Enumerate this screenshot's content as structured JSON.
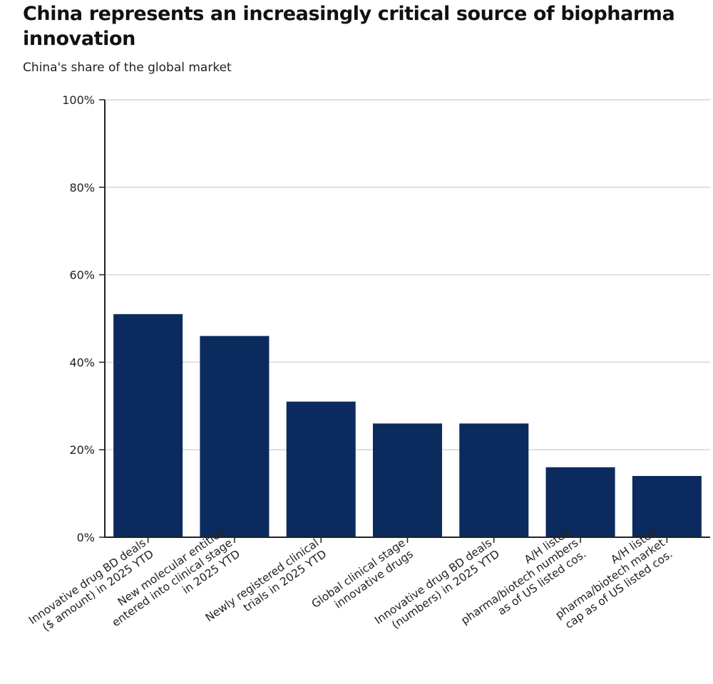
{
  "header": {
    "title": "China represents an increasingly critical source of biopharma innovation",
    "subtitle": "China's share of the global market"
  },
  "colors": {
    "bar": "#0b2b5e",
    "grid": "#d6d6d6",
    "axis": "#222222"
  },
  "chart_data": {
    "type": "bar",
    "title": "China represents an increasingly critical source of biopharma innovation",
    "subtitle": "China's share of the global market",
    "xlabel": "",
    "ylabel": "",
    "ylim": [
      0,
      100
    ],
    "yticks": [
      0,
      20,
      40,
      60,
      80,
      100
    ],
    "ytick_labels": [
      "0%",
      "20%",
      "40%",
      "60%",
      "80%",
      "100%"
    ],
    "grid": true,
    "categories": [
      [
        "Innovative drug BD deals",
        "($ amount) in 2025 YTD"
      ],
      [
        "New molecular entities",
        "entered into clinical stage",
        "in 2025 YTD"
      ],
      [
        "Newly registered clinical",
        "trials in 2025 YTD"
      ],
      [
        "Global clinical stage",
        "innovative drugs"
      ],
      [
        "Innovative drug BD deals",
        "(numbers) in 2025 YTD"
      ],
      [
        "A/H listed",
        "pharma/biotech numbers",
        "as of US listed cos."
      ],
      [
        "A/H listed",
        "pharma/biotech market",
        "cap as of US listed cos."
      ]
    ],
    "values": [
      51,
      46,
      31,
      26,
      26,
      16,
      14
    ]
  }
}
